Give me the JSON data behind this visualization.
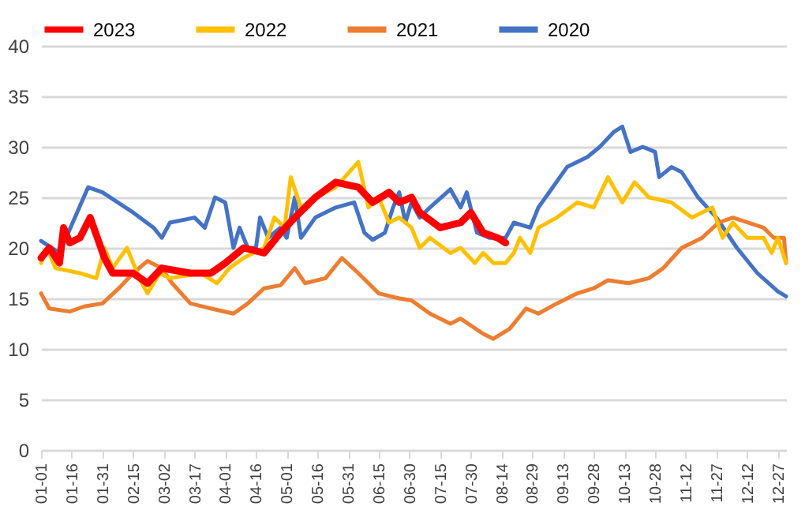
{
  "chart_data": {
    "type": "line",
    "legend": "top",
    "grid": "y",
    "ylim": [
      0,
      40
    ],
    "yticks": [
      0,
      5,
      10,
      15,
      20,
      25,
      30,
      35,
      40
    ],
    "xlim": [
      "--01-01",
      "--12-31"
    ],
    "xticks": [
      {
        "value": "--01-01",
        "label": "01-01"
      },
      {
        "value": "--01-16",
        "label": "01-16"
      },
      {
        "value": "--01-31",
        "label": "01-31"
      },
      {
        "value": "--02-15",
        "label": "02-15"
      },
      {
        "value": "--03-02",
        "label": "03-02"
      },
      {
        "value": "--03-17",
        "label": "03-17"
      },
      {
        "value": "--04-01",
        "label": "04-01"
      },
      {
        "value": "--04-16",
        "label": "04-16"
      },
      {
        "value": "--05-01",
        "label": "05-01"
      },
      {
        "value": "--05-16",
        "label": "05-16"
      },
      {
        "value": "--05-31",
        "label": "05-31"
      },
      {
        "value": "--06-15",
        "label": "06-15"
      },
      {
        "value": "--06-30",
        "label": "06-30"
      },
      {
        "value": "--07-15",
        "label": "07-15"
      },
      {
        "value": "--07-30",
        "label": "07-30"
      },
      {
        "value": "--08-14",
        "label": "08-14"
      },
      {
        "value": "--08-29",
        "label": "08-29"
      },
      {
        "value": "--09-13",
        "label": "09-13"
      },
      {
        "value": "--09-28",
        "label": "09-28"
      },
      {
        "value": "--10-13",
        "label": "10-13"
      },
      {
        "value": "--10-28",
        "label": "10-28"
      },
      {
        "value": "--11-12",
        "label": "11-12"
      },
      {
        "value": "--11-27",
        "label": "11-27"
      },
      {
        "value": "--12-12",
        "label": "12-12"
      },
      {
        "value": "--12-27",
        "label": "12-27"
      }
    ],
    "series": [
      {
        "name": "2023",
        "color": "#ff0000",
        "x": [
          "--01-01",
          "--01-05",
          "--01-10",
          "--01-12",
          "--01-15",
          "--01-20",
          "--01-25",
          "--02-01",
          "--02-05",
          "--02-15",
          "--02-22",
          "--03-01",
          "--03-15",
          "--03-25",
          "--04-01",
          "--04-10",
          "--04-20",
          "--04-28",
          "--05-05",
          "--05-15",
          "--05-25",
          "--06-05",
          "--06-12",
          "--06-20",
          "--06-25",
          "--07-01",
          "--07-05",
          "--07-15",
          "--07-25",
          "--07-30",
          "--08-05",
          "--08-12",
          "--08-16"
        ],
        "values": [
          19,
          20,
          18.5,
          22,
          20.5,
          21,
          23,
          19,
          17.5,
          17.5,
          16.5,
          18,
          17.5,
          17.5,
          18.5,
          20,
          19.5,
          21.5,
          23,
          25,
          26.5,
          26,
          24.5,
          25.5,
          24.5,
          25,
          23.5,
          22,
          22.5,
          23.5,
          21.5,
          21,
          20.5
        ]
      },
      {
        "name": "2022",
        "color": "#ffc000",
        "x": [
          "--01-01",
          "--01-04",
          "--01-08",
          "--01-20",
          "--01-28",
          "--02-01",
          "--02-05",
          "--02-12",
          "--02-18",
          "--02-22",
          "--02-28",
          "--03-05",
          "--03-20",
          "--03-28",
          "--04-03",
          "--04-10",
          "--04-20",
          "--04-25",
          "--04-30",
          "--05-03",
          "--05-08",
          "--05-15",
          "--05-25",
          "--06-05",
          "--06-10",
          "--06-15",
          "--06-20",
          "--06-25",
          "--07-01",
          "--07-05",
          "--07-10",
          "--07-20",
          "--07-25",
          "--08-01",
          "--08-05",
          "--08-10",
          "--08-16",
          "--08-20",
          "--08-23",
          "--08-28",
          "--09-01",
          "--09-10",
          "--09-20",
          "--09-28",
          "--10-05",
          "--10-12",
          "--10-18",
          "--10-25",
          "--11-05",
          "--11-15",
          "--11-25",
          "--11-30",
          "--12-05",
          "--12-12",
          "--12-20",
          "--12-24",
          "--12-27",
          "--12-31"
        ],
        "values": [
          18.5,
          20,
          18,
          17.5,
          17,
          20,
          18,
          20,
          17,
          15.5,
          17.5,
          17,
          17.5,
          16.5,
          18,
          19,
          20,
          23,
          22,
          27,
          24,
          25,
          26,
          28.5,
          24,
          25,
          22.5,
          23,
          22,
          20,
          21,
          19.5,
          20,
          18.5,
          19.5,
          18.5,
          18.5,
          19.5,
          21,
          19.5,
          22,
          23,
          24.5,
          24,
          27,
          24.5,
          26.5,
          25,
          24.5,
          23,
          24,
          21,
          22.5,
          21,
          21,
          19.5,
          21,
          18.5
        ]
      },
      {
        "name": "2021",
        "color": "#ed7d31",
        "x": [
          "--01-01",
          "--01-05",
          "--01-15",
          "--01-22",
          "--01-31",
          "--02-08",
          "--02-15",
          "--02-22",
          "--03-01",
          "--03-06",
          "--03-15",
          "--03-25",
          "--04-05",
          "--04-12",
          "--04-20",
          "--04-28",
          "--05-05",
          "--05-10",
          "--05-20",
          "--05-28",
          "--06-05",
          "--06-15",
          "--06-25",
          "--07-01",
          "--07-10",
          "--07-20",
          "--07-25",
          "--08-05",
          "--08-10",
          "--08-18",
          "--08-26",
          "--09-01",
          "--09-10",
          "--09-20",
          "--09-28",
          "--10-05",
          "--10-15",
          "--10-25",
          "--11-01",
          "--11-10",
          "--11-20",
          "--11-28",
          "--12-05",
          "--12-20",
          "--12-25",
          "--12-30",
          "--12-31"
        ],
        "values": [
          15.5,
          14,
          13.7,
          14.2,
          14.5,
          16,
          17.5,
          18.7,
          18,
          16.5,
          14.5,
          14,
          13.5,
          14.5,
          16,
          16.3,
          18,
          16.5,
          17,
          19,
          17.5,
          15.5,
          15,
          14.8,
          13.5,
          12.5,
          13,
          11.5,
          11,
          12,
          14,
          13.5,
          14.5,
          15.5,
          16,
          16.8,
          16.5,
          17,
          18,
          20,
          21,
          22.5,
          23,
          22,
          21,
          21,
          18.5
        ]
      },
      {
        "name": "2020",
        "color": "#4472c4",
        "x": [
          "--01-01",
          "--01-10",
          "--01-24",
          "--01-31",
          "--02-15",
          "--02-25",
          "--03-01",
          "--03-05",
          "--03-17",
          "--03-22",
          "--03-27",
          "--04-01",
          "--04-05",
          "--04-08",
          "--04-12",
          "--04-16",
          "--04-18",
          "--04-22",
          "--04-28",
          "--05-01",
          "--05-05",
          "--05-08",
          "--05-15",
          "--05-25",
          "--06-03",
          "--06-08",
          "--06-12",
          "--06-18",
          "--06-22",
          "--06-25",
          "--06-28",
          "--07-01",
          "--07-05",
          "--07-10",
          "--07-20",
          "--07-25",
          "--07-28",
          "--08-02",
          "--08-08",
          "--08-16",
          "--08-20",
          "--08-28",
          "--09-01",
          "--09-08",
          "--09-15",
          "--09-25",
          "--10-01",
          "--10-08",
          "--10-12",
          "--10-16",
          "--10-22",
          "--10-28",
          "--10-30",
          "--11-05",
          "--11-10",
          "--11-18",
          "--11-27",
          "--12-07",
          "--12-17",
          "--12-27",
          "--12-31"
        ],
        "values": [
          20.7,
          19.5,
          26,
          25.5,
          23.5,
          22,
          21,
          22.5,
          23,
          22,
          25,
          24.5,
          20,
          22,
          20,
          20,
          23,
          21,
          22,
          21,
          25,
          21,
          23,
          24,
          24.5,
          21.5,
          20.8,
          21.5,
          24,
          25.5,
          22.5,
          24.5,
          23,
          24,
          25.8,
          24,
          25.5,
          21.5,
          21,
          21,
          22.5,
          22,
          24,
          26,
          28,
          29,
          30,
          31.5,
          32,
          29.5,
          30,
          29.5,
          27,
          28,
          27.5,
          25,
          23,
          20,
          17.5,
          15.7,
          15.2
        ]
      }
    ]
  }
}
